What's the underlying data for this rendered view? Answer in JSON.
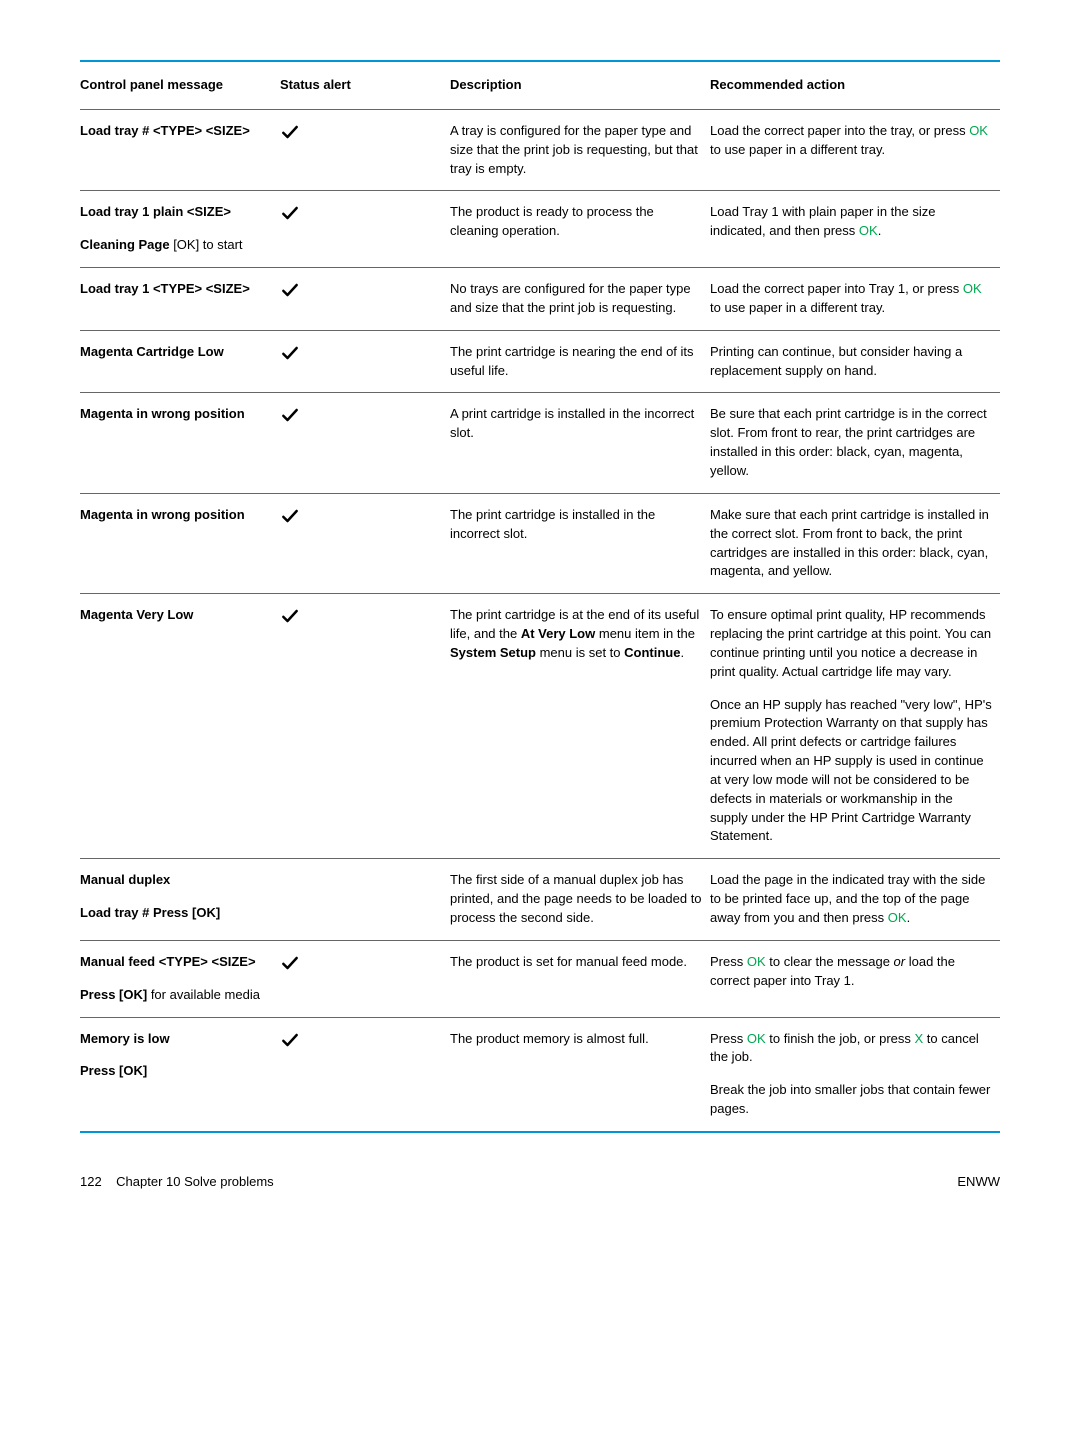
{
  "table": {
    "headers": [
      "Control panel message",
      "Status alert",
      "Description",
      "Recommended action"
    ],
    "green_color": "#00a651",
    "checkmark": true,
    "rows": [
      {
        "msg": "Load tray # <TYPE> <SIZE>",
        "hasCheck": true,
        "desc": "A tray is configured for the paper type and size that the print job is requesting, but that tray is empty.",
        "action_parts": [
          {
            "t": "Load the correct paper into the tray, or press "
          },
          {
            "t": "OK",
            "g": true
          },
          {
            "t": " to use paper in a different tray."
          }
        ]
      },
      {
        "msg": "Load tray 1 plain <SIZE>",
        "msg2": "Cleaning Page",
        "msg2_after": " [OK] to start",
        "hasCheck": true,
        "desc": "The product is ready to process the cleaning operation.",
        "action_parts": [
          {
            "t": "Load Tray 1 with plain paper in the size indicated, and then press "
          },
          {
            "t": "OK",
            "g": true
          },
          {
            "t": "."
          }
        ]
      },
      {
        "msg": "Load tray 1 <TYPE> <SIZE>",
        "hasCheck": true,
        "desc": "No trays are configured for the paper type and size that the print job is requesting.",
        "action_parts": [
          {
            "t": "Load the correct paper into Tray 1, or press "
          },
          {
            "t": "OK",
            "g": true
          },
          {
            "t": " to use paper in a different tray."
          }
        ]
      },
      {
        "msg": "Magenta Cartridge Low",
        "hasCheck": true,
        "desc": "The print cartridge is nearing the end of its useful life.",
        "action_parts": [
          {
            "t": "Printing can continue, but consider having a replacement supply on hand."
          }
        ]
      },
      {
        "msg": "Magenta in wrong position",
        "hasCheck": true,
        "desc": "A print cartridge is installed in the incorrect slot.",
        "action_parts": [
          {
            "t": "Be sure that each print cartridge is in the correct slot. From front to rear, the print cartridges are installed in this order: black, cyan, magenta, yellow."
          }
        ]
      },
      {
        "msg": "Magenta in wrong position",
        "hasCheck": true,
        "desc": "The print cartridge is installed in the incorrect slot.",
        "action_parts": [
          {
            "t": "Make sure that each print cartridge is installed in the correct slot. From front to back, the print cartridges are installed in this order: black, cyan, magenta, and yellow."
          }
        ]
      },
      {
        "msg": "Magenta Very Low",
        "hasCheck": true,
        "desc_html": "The print cartridge is at the end of its useful life, and the <b>At Very Low</b> menu item in the <b>System Setup</b> menu is set to <b>Continue</b>.",
        "action_parts": [
          {
            "t": "To ensure optimal print quality, HP recommends replacing the print cartridge at this point. You can continue printing until you notice a decrease in print quality. Actual cartridge life may vary."
          }
        ],
        "action_p2": "Once an HP supply has reached \"very low\", HP's premium Protection Warranty on that supply has ended. All print defects or cartridge failures incurred when an HP supply is used in continue at very low mode will not be considered to be defects in materials or workmanship in the supply under the HP Print Cartridge Warranty Statement."
      },
      {
        "msg": "Manual duplex",
        "msg3": "Load tray # Press [OK]",
        "hasCheck": false,
        "desc": "The first side of a manual duplex job has printed, and the page needs to be loaded to process the second side.",
        "action_parts": [
          {
            "t": "Load the page in the indicated tray with the side to be printed face up, and the top of the page away from you and then press "
          },
          {
            "t": "OK",
            "g": true
          },
          {
            "t": "."
          }
        ]
      },
      {
        "msg": "Manual feed <TYPE> <SIZE>",
        "msg2": "Press [OK]",
        "msg2_after": " for available media",
        "hasCheck": true,
        "desc": "The product is set for manual feed mode.",
        "action_parts": [
          {
            "t": "Press "
          },
          {
            "t": "OK",
            "g": true
          },
          {
            "t": " to clear the message "
          },
          {
            "t": "or",
            "i": true
          },
          {
            "t": " load the correct paper into Tray 1."
          }
        ]
      },
      {
        "msg": "Memory is low",
        "msg3": "Press [OK]",
        "hasCheck": true,
        "desc": "The product memory is almost full.",
        "action_parts": [
          {
            "t": "Press "
          },
          {
            "t": "OK",
            "g": true
          },
          {
            "t": " to finish the job, or press "
          },
          {
            "t": "X",
            "g": true
          },
          {
            "t": " to cancel the job."
          }
        ],
        "action_p2": "Break the job into smaller jobs that contain fewer pages."
      }
    ]
  },
  "footer": {
    "left_page": "122",
    "left_chapter": "Chapter 10   Solve problems",
    "right": "ENWW"
  }
}
